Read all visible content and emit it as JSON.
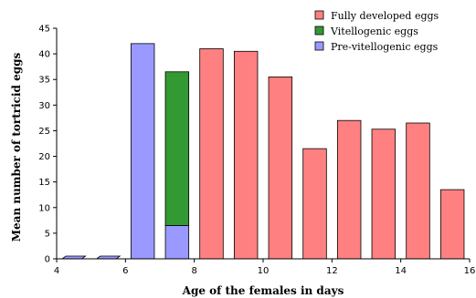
{
  "chart_data": {
    "type": "bar",
    "stacked": true,
    "xlabel": "Age of the females in days",
    "ylabel": "Mean number of tortricid eggs",
    "xlim": [
      4,
      16
    ],
    "ylim": [
      0,
      45
    ],
    "xticks": [
      4,
      6,
      8,
      10,
      12,
      14,
      16
    ],
    "yticks": [
      0,
      5,
      10,
      15,
      20,
      25,
      30,
      35,
      40,
      45
    ],
    "grid": false,
    "legend_position": "top-right",
    "x": [
      4.5,
      5.5,
      6.5,
      7.5,
      8.5,
      9.5,
      10.5,
      11.5,
      12.5,
      13.5,
      14.5,
      15.5
    ],
    "series": [
      {
        "name": "Pre-vitellogenic eggs",
        "color": "#9999ff",
        "values": [
          0.3,
          0.3,
          42,
          6.5,
          0,
          0,
          0,
          0,
          0,
          0,
          0,
          0
        ]
      },
      {
        "name": "Vitellogenic eggs",
        "color": "#339933",
        "values": [
          0,
          0,
          0,
          30,
          0,
          0,
          0,
          0,
          0,
          0,
          0,
          0
        ]
      },
      {
        "name": "Fully developed eggs",
        "color": "#ff8080",
        "values": [
          0,
          0,
          0,
          0,
          41,
          40.5,
          35.5,
          21.5,
          27,
          25.3,
          26.5,
          13.5
        ]
      }
    ],
    "legend_order": [
      "Fully developed eggs",
      "Vitellogenic eggs",
      "Pre-vitellogenic eggs"
    ]
  }
}
